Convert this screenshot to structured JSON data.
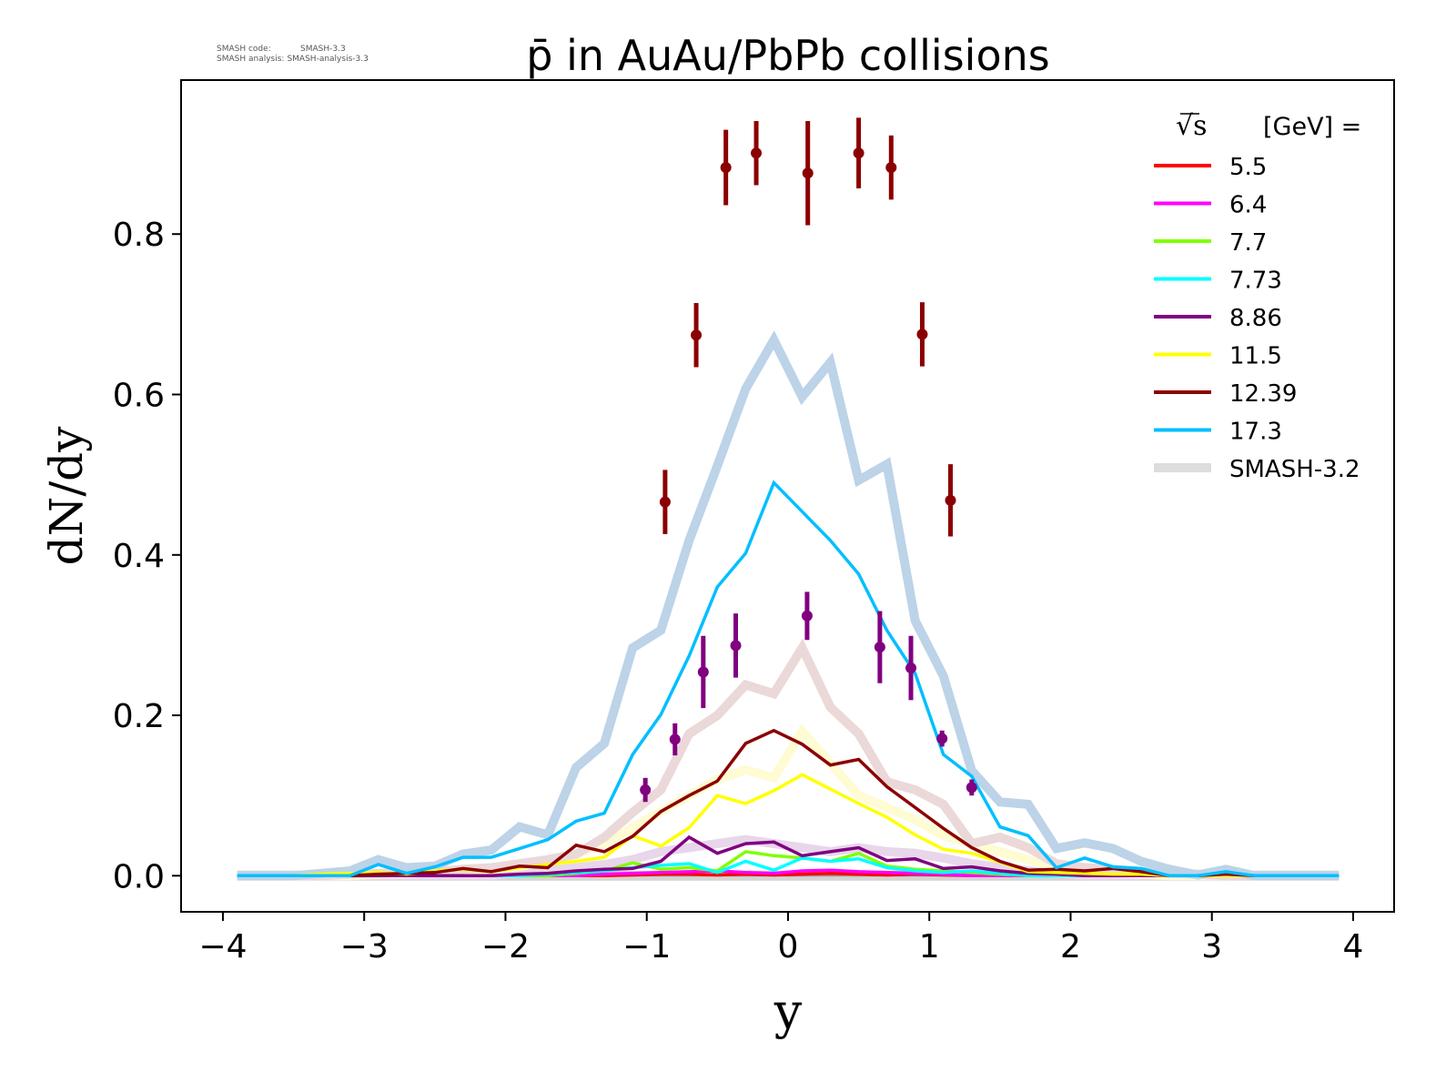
{
  "meta": {
    "code_label": "SMASH code:",
    "code_value": "SMASH-3.3",
    "analysis_label": "SMASH analysis:",
    "analysis_value": "SMASH-analysis-3.3"
  },
  "chart_data": {
    "type": "line",
    "title": "p̄ in AuAu/PbPb collisions",
    "xlabel": "y",
    "ylabel": "dN/dy",
    "xlim": [
      -4.296,
      4.29
    ],
    "ylim": [
      -0.045,
      0.992
    ],
    "xticks": [
      -4,
      -3,
      -2,
      -1,
      0,
      1,
      2,
      3,
      4
    ],
    "xtick_labels": [
      "−4",
      "−3",
      "−2",
      "−1",
      "0",
      "1",
      "2",
      "3",
      "4"
    ],
    "yticks": [
      0.0,
      0.2,
      0.4,
      0.6,
      0.8
    ],
    "ytick_labels": [
      "0.0",
      "0.2",
      "0.4",
      "0.6",
      "0.8"
    ],
    "grid": false,
    "legend": {
      "placement": "top-right",
      "title_root": "√s",
      "title_rest": "[GeV] =",
      "entries": [
        "5.5",
        "6.4",
        "7.7",
        "7.73",
        "8.86",
        "11.5",
        "12.39",
        "17.3",
        "SMASH-3.2"
      ],
      "colors": [
        "#ff0000",
        "#ff00ff",
        "#7fff00",
        "#00ffff",
        "#800080",
        "#ffff00",
        "#8b0000",
        "#00bfff",
        "#dddddd"
      ]
    },
    "x": [
      -3.9,
      -3.7,
      -3.5,
      -3.3,
      -3.1,
      -2.9,
      -2.7,
      -2.5,
      -2.3,
      -2.1,
      -1.9,
      -1.7,
      -1.5,
      -1.3,
      -1.1,
      -0.9,
      -0.7,
      -0.5,
      -0.3,
      -0.1,
      0.1,
      0.3,
      0.5,
      0.7,
      0.9,
      1.1,
      1.3,
      1.5,
      1.7,
      1.9,
      2.1,
      2.3,
      2.5,
      2.7,
      2.9,
      3.1,
      3.3,
      3.5,
      3.7,
      3.9
    ],
    "reference_series": [
      {
        "name": "SMASH-3.2 baseline",
        "color": "#d4d4d4",
        "values": [
          0,
          0,
          0,
          0,
          0,
          0,
          0,
          0,
          0,
          0,
          0,
          0,
          0,
          0,
          0,
          0,
          0,
          0,
          0,
          0,
          0,
          0,
          0,
          0,
          0,
          0,
          0,
          0,
          0,
          0,
          0,
          0,
          0,
          0,
          0,
          0,
          0,
          0,
          0,
          0
        ]
      },
      {
        "name": "8.86 SMASH-3.2",
        "color": "#e8d6ea",
        "values": [
          0,
          0,
          0,
          0,
          0,
          0,
          0,
          0,
          0,
          0,
          0.004,
          0.006,
          0.01,
          0.014,
          0.02,
          0.03,
          0.035,
          0.04,
          0.045,
          0.04,
          0.035,
          0.03,
          0.035,
          0.03,
          0.028,
          0.022,
          0.015,
          0.01,
          0.006,
          0.003,
          0,
          0,
          0,
          0,
          0,
          0,
          0,
          0,
          0,
          0
        ]
      },
      {
        "name": "11.5 SMASH-3.2",
        "color": "#fffbd2",
        "values": [
          0,
          0,
          0,
          0,
          0,
          0.002,
          0.003,
          0.004,
          0.006,
          0.008,
          0.012,
          0.018,
          0.026,
          0.04,
          0.06,
          0.08,
          0.1,
          0.12,
          0.132,
          0.122,
          0.18,
          0.14,
          0.1,
          0.085,
          0.07,
          0.05,
          0.04,
          0.03,
          0.02,
          0.01,
          0.006,
          0.004,
          0.002,
          0,
          0,
          0,
          0,
          0,
          0,
          0
        ]
      },
      {
        "name": "12.39 SMASH-3.2",
        "color": "#ebd8d8",
        "values": [
          0,
          0,
          0,
          0,
          0.002,
          0.003,
          0.004,
          0.005,
          0.008,
          0.01,
          0.015,
          0.02,
          0.027,
          0.048,
          0.079,
          0.107,
          0.177,
          0.2,
          0.238,
          0.227,
          0.284,
          0.21,
          0.177,
          0.117,
          0.107,
          0.089,
          0.04,
          0.048,
          0.035,
          0.015,
          0.01,
          0.008,
          0.005,
          0.003,
          0.002,
          0,
          0,
          0,
          0,
          0
        ]
      },
      {
        "name": "17.3 SMASH-3.2",
        "color": "#bcd3e8",
        "values": [
          0,
          0,
          0,
          0.003,
          0.006,
          0.02,
          0.01,
          0.012,
          0.027,
          0.032,
          0.061,
          0.051,
          0.135,
          0.165,
          0.284,
          0.306,
          0.418,
          0.511,
          0.607,
          0.668,
          0.597,
          0.64,
          0.493,
          0.513,
          0.318,
          0.249,
          0.131,
          0.092,
          0.089,
          0.034,
          0.041,
          0.034,
          0.018,
          0.008,
          0.001,
          0.008,
          0,
          0,
          0,
          0
        ]
      }
    ],
    "series": [
      {
        "name": "5.5",
        "color": "#ff0000",
        "values": [
          0,
          0,
          0,
          0,
          0,
          0,
          0,
          0,
          0,
          0,
          0,
          0,
          0,
          0,
          0.001,
          0.002,
          0.002,
          0.001,
          0.002,
          0.001,
          0.002,
          0.003,
          0.002,
          0.001,
          0.002,
          0.001,
          0,
          0,
          0,
          0,
          0,
          0,
          0,
          0,
          0,
          0,
          0,
          0,
          0,
          0
        ]
      },
      {
        "name": "6.4",
        "color": "#ff00ff",
        "values": [
          0,
          0,
          0,
          0,
          0,
          0,
          0,
          0,
          0,
          0,
          0,
          0,
          0,
          0.002,
          0.003,
          0.004,
          0.005,
          0.006,
          0.004,
          0.003,
          0.006,
          0.007,
          0.005,
          0.004,
          0.003,
          0.002,
          0,
          0,
          0,
          0,
          0,
          0,
          0,
          0,
          0,
          0,
          0,
          0,
          0,
          0
        ]
      },
      {
        "name": "7.7",
        "color": "#7fff00",
        "values": [
          0,
          0,
          0,
          0,
          0,
          0,
          0,
          0,
          0,
          0,
          0,
          0,
          0.003,
          0.006,
          0.016,
          0.008,
          0.01,
          0.006,
          0.03,
          0.025,
          0.022,
          0.018,
          0.028,
          0.012,
          0.008,
          0.006,
          0.004,
          0.002,
          0,
          0,
          0,
          0,
          0,
          0,
          0,
          0,
          0,
          0,
          0,
          0
        ]
      },
      {
        "name": "7.73",
        "color": "#00ffff",
        "values": [
          0,
          0,
          0,
          0,
          0,
          0,
          0,
          0,
          0,
          0,
          0,
          0.002,
          0.004,
          0.006,
          0.01,
          0.013,
          0.015,
          0.004,
          0.018,
          0.007,
          0.022,
          0.018,
          0.021,
          0.01,
          0.006,
          0.004,
          0.006,
          0.003,
          0,
          0,
          0,
          0,
          0,
          0,
          0,
          0,
          0,
          0,
          0,
          0
        ]
      },
      {
        "name": "8.86",
        "color": "#800080",
        "values": [
          0,
          0,
          0,
          0,
          0,
          0,
          0,
          0,
          0,
          0,
          0.002,
          0.003,
          0.006,
          0.008,
          0.009,
          0.018,
          0.048,
          0.028,
          0.04,
          0.042,
          0.025,
          0.03,
          0.035,
          0.019,
          0.021,
          0.009,
          0.011,
          0.006,
          0.003,
          0.002,
          0,
          0,
          0,
          0,
          0,
          0,
          0,
          0,
          0,
          0
        ]
      },
      {
        "name": "11.5",
        "color": "#ffff00",
        "values": [
          0,
          0,
          0,
          0.002,
          0.003,
          0.004,
          0.002,
          0.006,
          0.008,
          0.005,
          0.01,
          0.014,
          0.018,
          0.023,
          0.05,
          0.037,
          0.06,
          0.1,
          0.09,
          0.106,
          0.126,
          0.108,
          0.09,
          0.073,
          0.051,
          0.033,
          0.028,
          0.017,
          0.005,
          0.004,
          0.003,
          0.002,
          0.002,
          0,
          0,
          0,
          0,
          0,
          0,
          0
        ]
      },
      {
        "name": "12.39",
        "color": "#8b0000",
        "values": [
          0,
          0,
          0,
          0,
          0,
          0.002,
          0.003,
          0.004,
          0.009,
          0.005,
          0.012,
          0.01,
          0.038,
          0.03,
          0.049,
          0.08,
          0.1,
          0.118,
          0.165,
          0.181,
          0.164,
          0.138,
          0.145,
          0.111,
          0.085,
          0.059,
          0.035,
          0.018,
          0.007,
          0.008,
          0.006,
          0.009,
          0.005,
          0,
          0,
          0.002,
          0,
          0,
          0,
          0
        ]
      },
      {
        "name": "17.3",
        "color": "#00bfff",
        "values": [
          0,
          0,
          0,
          0,
          0,
          0.014,
          0.003,
          0.011,
          0.023,
          0.023,
          0.034,
          0.045,
          0.068,
          0.078,
          0.151,
          0.201,
          0.274,
          0.36,
          0.402,
          0.49,
          0.454,
          0.418,
          0.376,
          0.306,
          0.252,
          0.151,
          0.124,
          0.061,
          0.05,
          0.01,
          0.022,
          0.011,
          0.009,
          0,
          0,
          0.005,
          0,
          0,
          0,
          0
        ]
      }
    ],
    "experimental_data": [
      {
        "name": "12.39 data",
        "color": "#8b0000",
        "x": [
          -0.87,
          -0.65,
          -0.44,
          -0.225,
          0.14,
          0.5,
          0.73,
          0.95,
          1.15
        ],
        "y": [
          0.466,
          0.674,
          0.883,
          0.901,
          0.876,
          0.901,
          0.883,
          0.675,
          0.468
        ],
        "yerr": [
          0.04,
          0.04,
          0.047,
          0.04,
          0.065,
          0.044,
          0.04,
          0.04,
          0.045
        ]
      },
      {
        "name": "8.86 data",
        "color": "#800080",
        "x": [
          -1.01,
          -0.8,
          -0.6,
          -0.37,
          0.135,
          0.65,
          0.87,
          1.09,
          1.3
        ],
        "y": [
          0.107,
          0.17,
          0.254,
          0.287,
          0.324,
          0.285,
          0.259,
          0.171,
          0.11
        ],
        "yerr": [
          0.015,
          0.02,
          0.045,
          0.04,
          0.03,
          0.045,
          0.04,
          0.01,
          0.01
        ]
      }
    ]
  }
}
